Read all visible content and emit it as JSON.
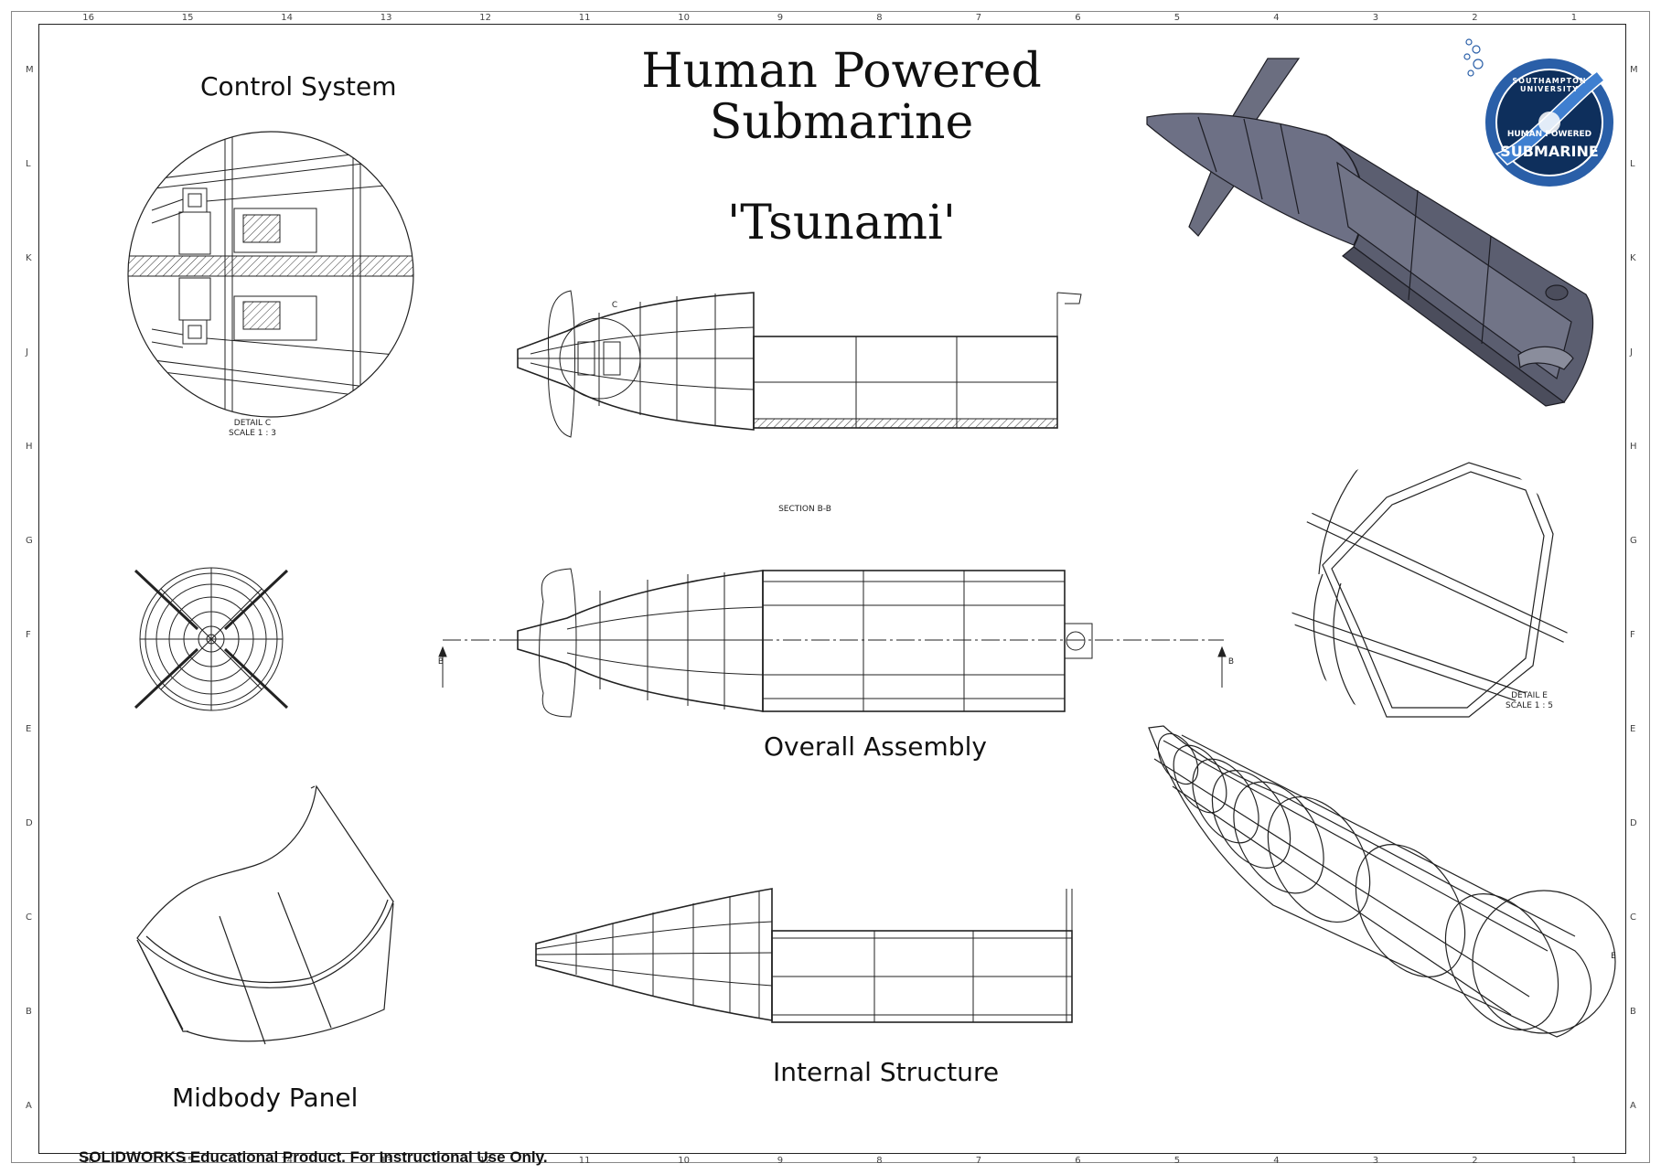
{
  "title": {
    "line1": "Human Powered",
    "line2": "Submarine",
    "name": "'Tsunami'"
  },
  "views": {
    "control_system": "Control System",
    "overall_assembly": "Overall Assembly",
    "internal_structure": "Internal Structure",
    "midbody_panel": "Midbody Panel",
    "section_label": "SECTION B-B",
    "detail_c": "DETAIL C",
    "detail_c_scale": "SCALE 1 : 3",
    "detail_e": "DETAIL E",
    "detail_e_scale": "SCALE 1 : 5",
    "marker_b": "B",
    "marker_c": "C",
    "marker_e": "E"
  },
  "logo": {
    "top_text": "SOUTHAMPTON UNIVERSITY",
    "mid_text": "HUMAN POWERED",
    "bottom_text": "SUBMARINE",
    "ring_color": "#2a5fa8",
    "inner_color": "#0e2f5c"
  },
  "border": {
    "columns": [
      "16",
      "15",
      "14",
      "13",
      "12",
      "11",
      "10",
      "9",
      "8",
      "7",
      "6",
      "5",
      "4",
      "3",
      "2",
      "1"
    ],
    "rows": [
      "M",
      "L",
      "K",
      "J",
      "H",
      "G",
      "F",
      "E",
      "D",
      "C",
      "B",
      "A"
    ]
  },
  "footer": "SOLIDWORKS Educational Product. For Instructional Use Only."
}
